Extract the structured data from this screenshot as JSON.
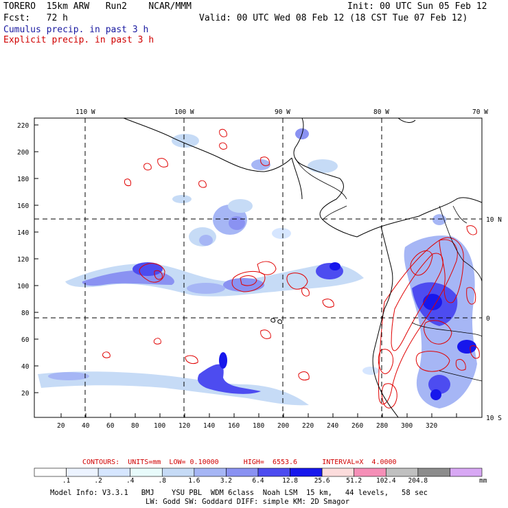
{
  "header": {
    "model": "TORERO  15km ARW   Run2    NCAR/MMM",
    "init": "Init: 00 UTC Sun 05 Feb 12",
    "fcst": "Fcst:   72 h",
    "valid": "Valid: 00 UTC Wed 08 Feb 12 (18 CST Tue 07 Feb 12)",
    "legend_cumulus": "Cumulus precip. in past 3 h",
    "legend_explicit": "Explicit precip. in past 3 h"
  },
  "map": {
    "lon_labels": [
      "110 W",
      "100 W",
      "90 W",
      "80 W",
      "70 W"
    ],
    "lat_labels": [
      "10 N",
      "0",
      "10 S"
    ],
    "y_ticks": [
      "220",
      "200",
      "180",
      "160",
      "140",
      "120",
      "100",
      "80",
      "60",
      "40",
      "20"
    ],
    "x_ticks": [
      "20",
      "40",
      "60",
      "80",
      "100",
      "120",
      "140",
      "160",
      "180",
      "200",
      "220",
      "240",
      "260",
      "280",
      "300",
      "320"
    ]
  },
  "contours": {
    "label": "CONTOURS:  UNITS=mm  LOW= 0.10000      HIGH=  6553.6      INTERVAL=X  4.0000"
  },
  "colorbar": {
    "labels": [
      ".1",
      ".2",
      ".4",
      ".8",
      "1.6",
      "3.2",
      "6.4",
      "12.8",
      "25.6",
      "51.2",
      "102.4",
      "204.8"
    ],
    "unit": "mm",
    "colors": [
      "#ffffff",
      "#ecf3ff",
      "#d6e6ff",
      "#e8fbfb",
      "#c6dbf6",
      "#a6b6f5",
      "#8a92f2",
      "#4d4cf0",
      "#1717ec",
      "#fcdcdc",
      "#f58fb7",
      "#c0c0c0",
      "#8c8c8c",
      "#d8a8f4"
    ]
  },
  "footer": {
    "line1": "Model Info: V3.3.1   BMJ    YSU PBL  WDM 6class  Noah LSM  15 km,   44 levels,   58 sec",
    "line2": "LW: Godd SW: Goddard DIFF: simple KM: 2D Smagor"
  }
}
